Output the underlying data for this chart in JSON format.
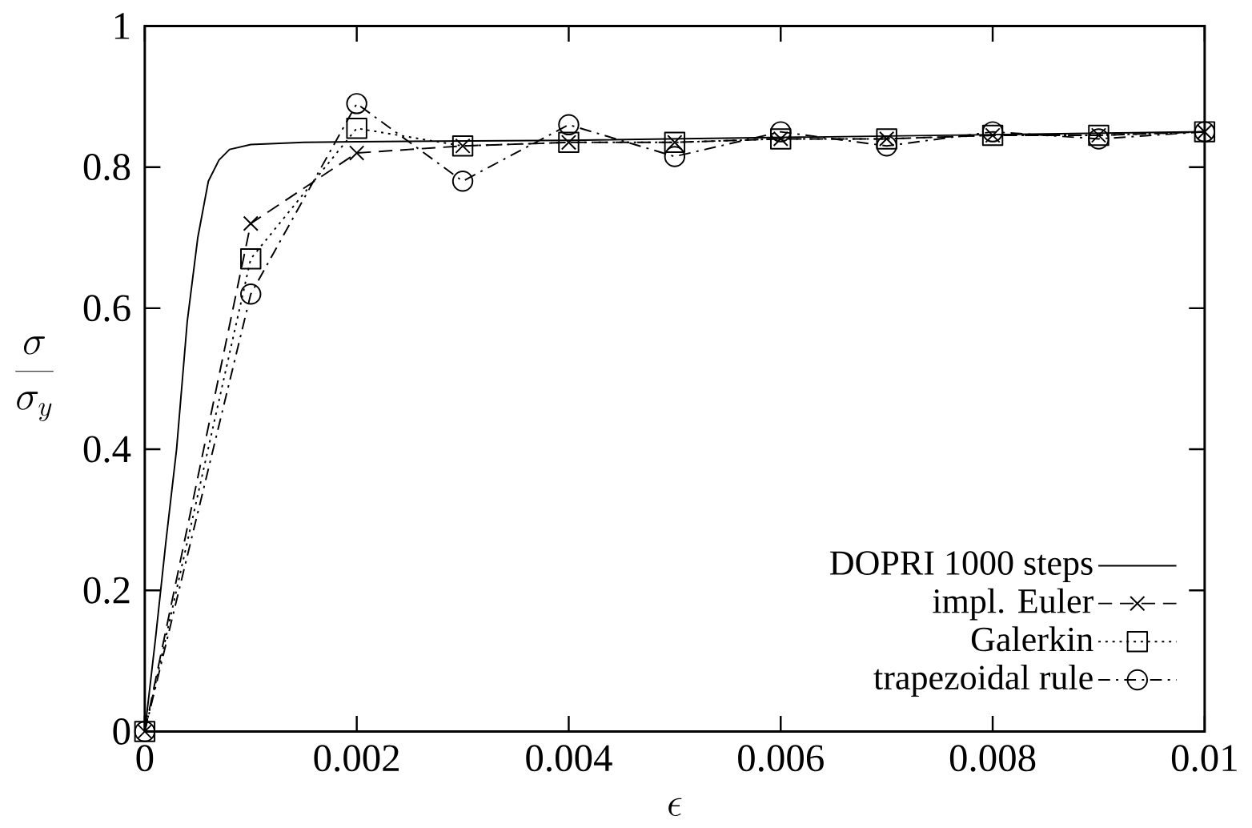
{
  "chart_data": {
    "type": "line",
    "xlabel": "\\epsilon",
    "ylabel": "\\frac{\\sigma}{\\sigma_y}",
    "xlim": [
      0,
      0.01
    ],
    "ylim": [
      0,
      1
    ],
    "xticks": [
      0,
      0.002,
      0.004,
      0.006,
      0.008,
      0.01
    ],
    "yticks": [
      0,
      0.2,
      0.4,
      0.6,
      0.8,
      1
    ],
    "legend": "bottom right",
    "grid": false,
    "series": [
      {
        "name": "DOPRI 1000 steps",
        "color": "#000000",
        "line_style": "solid",
        "marker": "none",
        "x": [
          0,
          0.0001,
          0.0002,
          0.0003,
          0.0004,
          0.0005,
          0.0006,
          0.0007,
          0.0008,
          0.001,
          0.0015,
          0.002,
          0.004,
          0.006,
          0.008,
          0.01
        ],
        "values": [
          0,
          0.13,
          0.27,
          0.4,
          0.58,
          0.7,
          0.78,
          0.81,
          0.825,
          0.832,
          0.835,
          0.836,
          0.838,
          0.842,
          0.846,
          0.85
        ]
      },
      {
        "name": "impl. Euler",
        "color": "#000000",
        "line_style": "dashed",
        "marker": "cross",
        "x": [
          0,
          0.001,
          0.002,
          0.003,
          0.004,
          0.005,
          0.006,
          0.007,
          0.008,
          0.009,
          0.01
        ],
        "values": [
          0,
          0.72,
          0.82,
          0.83,
          0.835,
          0.835,
          0.84,
          0.84,
          0.845,
          0.845,
          0.85
        ]
      },
      {
        "name": "Galerkin",
        "color": "#000000",
        "line_style": "dotted",
        "marker": "square",
        "x": [
          0,
          0.001,
          0.002,
          0.003,
          0.004,
          0.005,
          0.006,
          0.007,
          0.008,
          0.009,
          0.01
        ],
        "values": [
          0,
          0.67,
          0.855,
          0.83,
          0.835,
          0.835,
          0.84,
          0.84,
          0.845,
          0.845,
          0.85
        ]
      },
      {
        "name": "trapezoidal rule",
        "color": "#000000",
        "line_style": "dashdot",
        "marker": "circle",
        "x": [
          0,
          0.001,
          0.002,
          0.003,
          0.004,
          0.005,
          0.006,
          0.007,
          0.008,
          0.009,
          0.01
        ],
        "values": [
          0,
          0.62,
          0.89,
          0.78,
          0.86,
          0.815,
          0.85,
          0.83,
          0.85,
          0.84,
          0.85
        ]
      }
    ]
  }
}
